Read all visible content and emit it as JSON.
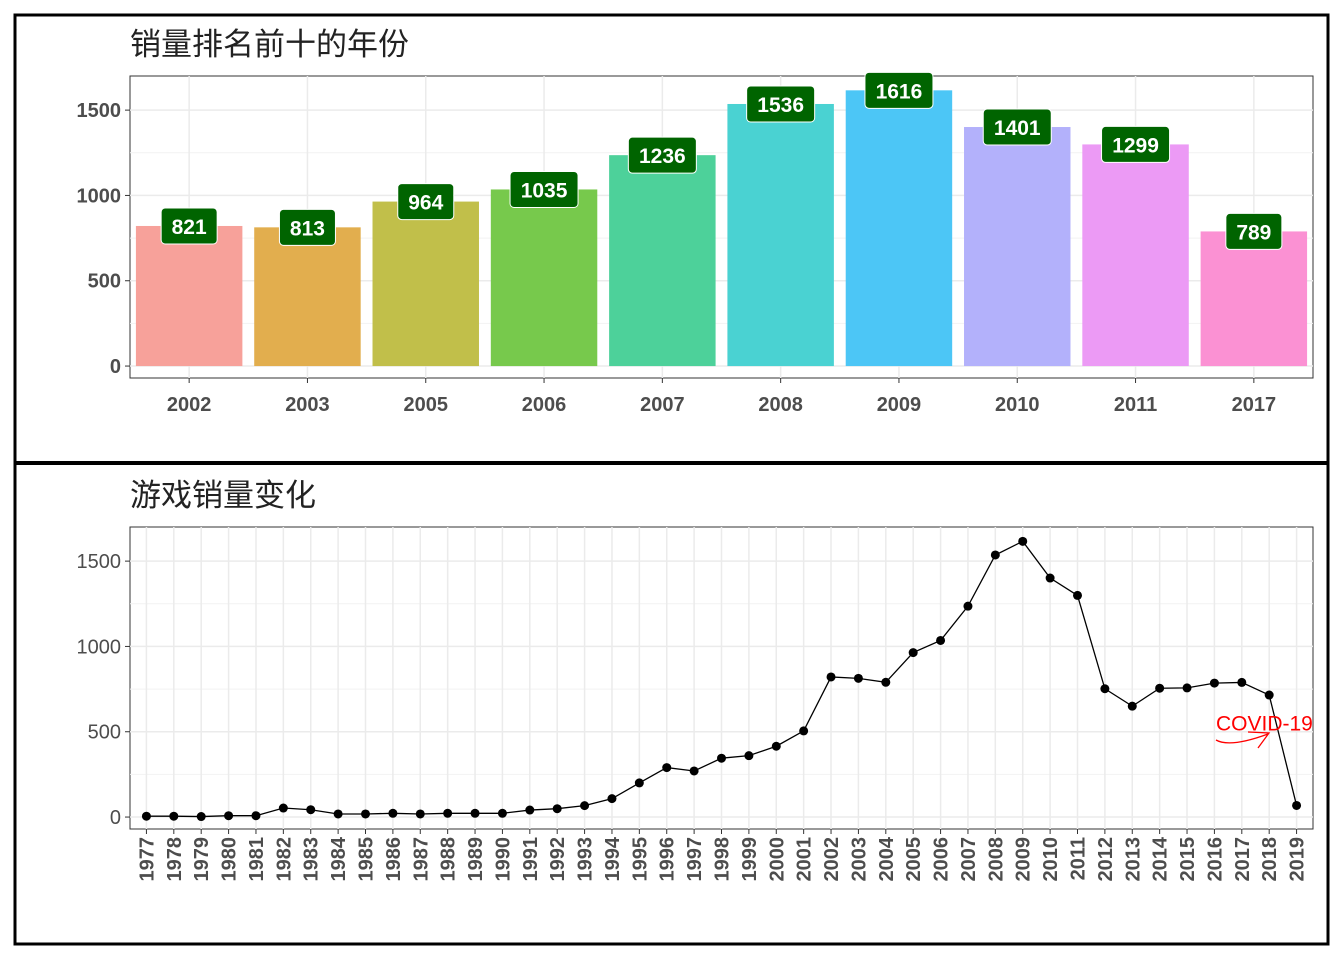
{
  "chart_data": [
    {
      "type": "bar",
      "title": "销量排名前十的年份",
      "categories": [
        "2002",
        "2003",
        "2005",
        "2006",
        "2007",
        "2008",
        "2009",
        "2010",
        "2011",
        "2017"
      ],
      "values": [
        821,
        813,
        964,
        1035,
        1236,
        1536,
        1616,
        1401,
        1299,
        789
      ],
      "colors": [
        "#F7A19A",
        "#E2AE4E",
        "#C1BF4A",
        "#77C94C",
        "#4DD19A",
        "#4AD2D2",
        "#4CC6F6",
        "#B3B1FB",
        "#EC9AF5",
        "#FB91D3"
      ],
      "label_fill": "#006400",
      "yticks": [
        0,
        500,
        1000,
        1500
      ],
      "ylim": [
        -70,
        1700
      ],
      "grid": true
    },
    {
      "type": "line",
      "title": "游戏销量变化",
      "x": [
        1977,
        1978,
        1979,
        1980,
        1981,
        1982,
        1983,
        1984,
        1985,
        1986,
        1987,
        1988,
        1989,
        1990,
        1991,
        1992,
        1993,
        1994,
        1995,
        1996,
        1997,
        1998,
        1999,
        2000,
        2001,
        2002,
        2003,
        2004,
        2005,
        2006,
        2007,
        2008,
        2009,
        2010,
        2011,
        2012,
        2013,
        2014,
        2015,
        2016,
        2017,
        2018,
        2019
      ],
      "y": [
        5,
        5,
        3,
        8,
        8,
        53,
        43,
        18,
        18,
        22,
        18,
        22,
        22,
        22,
        41,
        49,
        67,
        108,
        200,
        290,
        270,
        345,
        360,
        415,
        505,
        821,
        813,
        790,
        964,
        1035,
        1236,
        1536,
        1616,
        1401,
        1299,
        752,
        650,
        755,
        757,
        785,
        789,
        715,
        68
      ],
      "yticks": [
        0,
        500,
        1000,
        1500
      ],
      "ylim": [
        -70,
        1700
      ],
      "xlim": [
        1976.4,
        2019.6
      ],
      "grid": true,
      "annotation": {
        "text": "COVID-19",
        "x": 2018,
        "y": 500,
        "color": "#FF0000"
      }
    }
  ]
}
